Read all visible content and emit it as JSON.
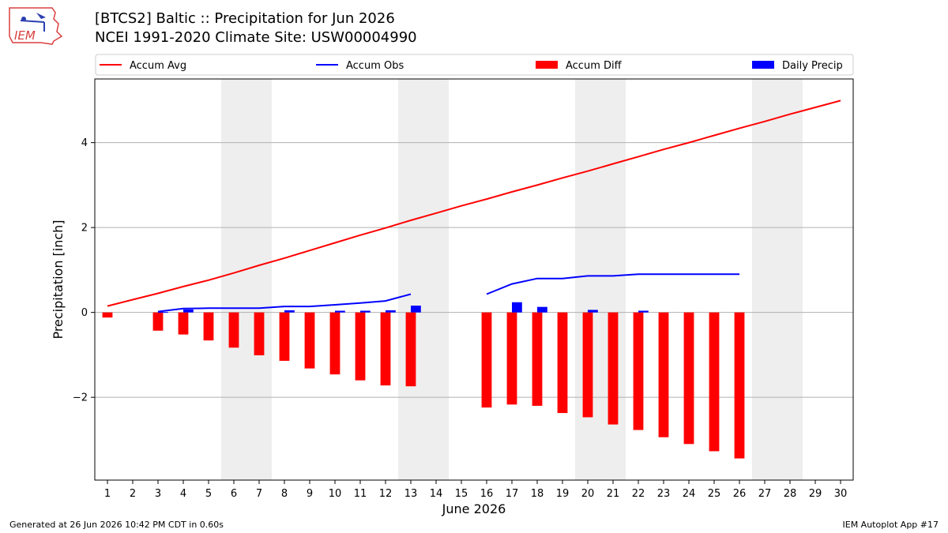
{
  "page": {
    "title_line1": "[BTCS2] Baltic :: Precipitation for Jun 2026",
    "title_line2": "NCEI 1991-2020 Climate Site: USW00004990",
    "footer_left": "Generated at 26 Jun 2026 10:42 PM CDT in 0.60s",
    "footer_right": "IEM Autoplot App #17",
    "logo_text": "IEM"
  },
  "chart_data": {
    "type": "bar",
    "xlabel": "June 2026",
    "ylabel": "Precipitation [inch]",
    "xlim": [
      0.5,
      30.5
    ],
    "ylim": [
      -3.95,
      5.5
    ],
    "yticks": [
      -2,
      0,
      2,
      4
    ],
    "xticks": [
      1,
      2,
      3,
      4,
      5,
      6,
      7,
      8,
      9,
      10,
      11,
      12,
      13,
      14,
      15,
      16,
      17,
      18,
      19,
      20,
      21,
      22,
      23,
      24,
      25,
      26,
      27,
      28,
      29,
      30
    ],
    "grid": "horizontal",
    "weekend_bands": [
      [
        6,
        7
      ],
      [
        13,
        14
      ],
      [
        20,
        21
      ],
      [
        27,
        28
      ]
    ],
    "legend": {
      "position": "top",
      "entries": [
        {
          "label": "Accum Avg",
          "type": "line",
          "color": "#ff0000"
        },
        {
          "label": "Accum Obs",
          "type": "line",
          "color": "#0000ff"
        },
        {
          "label": "Accum Diff",
          "type": "bar",
          "color": "#ff0000"
        },
        {
          "label": "Daily Precip",
          "type": "bar",
          "color": "#0000ff"
        }
      ]
    },
    "series": [
      {
        "name": "Accum Avg",
        "type": "line",
        "color": "#ff0000",
        "x": [
          1,
          2,
          3,
          4,
          5,
          6,
          7,
          8,
          9,
          10,
          11,
          12,
          13,
          14,
          15,
          16,
          17,
          18,
          19,
          20,
          21,
          22,
          23,
          24,
          25,
          26,
          27,
          28,
          29,
          30
        ],
        "values": [
          0.15,
          0.3,
          0.45,
          0.61,
          0.76,
          0.93,
          1.11,
          1.28,
          1.46,
          1.64,
          1.82,
          1.99,
          2.17,
          2.34,
          2.51,
          2.67,
          2.84,
          3.0,
          3.17,
          3.33,
          3.5,
          3.67,
          3.84,
          4.0,
          4.17,
          4.34,
          4.5,
          4.67,
          4.83,
          4.99
        ]
      },
      {
        "name": "Accum Obs",
        "type": "line",
        "color": "#0000ff",
        "x": [
          3,
          4,
          5,
          6,
          7,
          8,
          9,
          10,
          11,
          12,
          13,
          null,
          16,
          17,
          18,
          19,
          20,
          21,
          22,
          23,
          24,
          25,
          26
        ],
        "values": [
          0.02,
          0.09,
          0.1,
          0.1,
          0.1,
          0.14,
          0.14,
          0.18,
          0.22,
          0.27,
          0.43,
          null,
          0.43,
          0.67,
          0.8,
          0.8,
          0.86,
          0.86,
          0.9,
          0.9,
          0.9,
          0.9,
          0.9
        ]
      },
      {
        "name": "Accum Diff",
        "type": "bar",
        "color": "#ff0000",
        "x": [
          1,
          3,
          4,
          5,
          6,
          7,
          8,
          9,
          10,
          11,
          12,
          13,
          16,
          17,
          18,
          19,
          20,
          21,
          22,
          23,
          24,
          25,
          26
        ],
        "values": [
          -0.12,
          -0.43,
          -0.52,
          -0.66,
          -0.83,
          -1.01,
          -1.14,
          -1.32,
          -1.46,
          -1.6,
          -1.72,
          -1.74,
          -2.24,
          -2.17,
          -2.2,
          -2.37,
          -2.47,
          -2.64,
          -2.77,
          -2.94,
          -3.1,
          -3.27,
          -3.44
        ]
      },
      {
        "name": "Daily Precip",
        "type": "bar",
        "color": "#0000ff",
        "x": [
          3,
          4,
          8,
          10,
          11,
          12,
          13,
          17,
          18,
          20,
          22
        ],
        "values": [
          0.01,
          0.07,
          0.05,
          0.04,
          0.04,
          0.05,
          0.16,
          0.24,
          0.13,
          0.06,
          0.04
        ]
      }
    ]
  }
}
